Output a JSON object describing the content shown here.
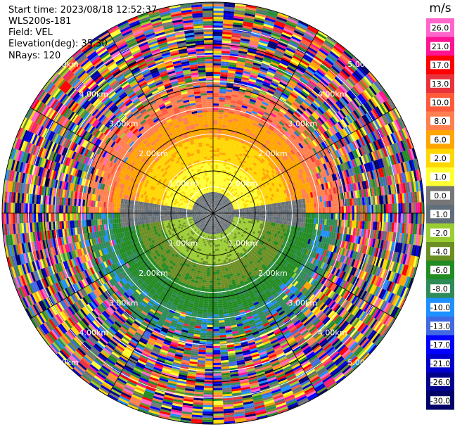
{
  "header": {
    "start_time": "Start time: 2023/08/18 12:52:37",
    "instrument": "WLS200s-181",
    "field": "Field: VEL",
    "elevation": "Elevation(deg): 35.30",
    "nrays": "NRays: 120"
  },
  "chart_data": {
    "type": "heatmap",
    "projection": "polar-ppi",
    "field": "VEL",
    "units": "m/s",
    "elevation_deg": 35.3,
    "n_rays": 120,
    "range_rings_km": [
      1.0,
      2.0,
      3.0,
      4.0,
      5.0
    ],
    "range_ring_labels": [
      "1.00km",
      "2.00km",
      "3.00km",
      "4.00km",
      "5.00km"
    ],
    "max_range_km": 5.1,
    "colorbar": {
      "ticks": [
        "26.0",
        "21.0",
        "17.0",
        "13.0",
        "10.0",
        "8.0",
        "6.0",
        "2.0",
        "1.0",
        "0.0",
        "-1.0",
        "-2.0",
        "-4.0",
        "-6.0",
        "-8.0",
        "-10.0",
        "-13.0",
        "-17.0",
        "-21.0",
        "-26.0",
        "-30.0"
      ],
      "colors": [
        "#ff66cc",
        "#ff1493",
        "#ff0000",
        "#e8323c",
        "#ff5a3c",
        "#ff7f50",
        "#ffa500",
        "#ffd700",
        "#ffff33",
        "#777777",
        "#5f6e7a",
        "#9acd32",
        "#6b8e23",
        "#228b22",
        "#2e8b57",
        "#1e90ff",
        "#4169e1",
        "#0000ff",
        "#0000cd",
        "#00008b",
        "#000066"
      ]
    },
    "observed_pattern": {
      "near_range_north": "positive 1 to 8 m/s (yellow/orange)",
      "near_range_south": "negative -2 to -8 m/s (green)",
      "near_range_center": "around 0 m/s (grey)",
      "far_range": "noisy full-scale values"
    }
  }
}
